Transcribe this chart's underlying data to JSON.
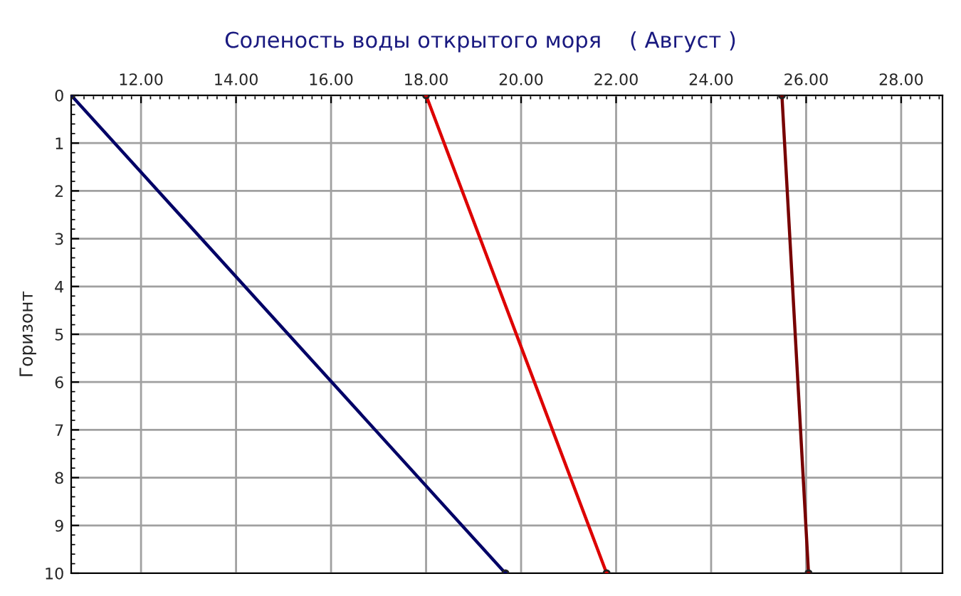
{
  "chart_data": {
    "type": "line",
    "title": "Соленость воды открытого моря    ( Август )",
    "ylabel": "Горизонт",
    "xlim": [
      10.53,
      28.87
    ],
    "ylim": [
      10,
      0
    ],
    "xticks": [
      {
        "value": 12,
        "label": "12.00"
      },
      {
        "value": 14,
        "label": "14.00"
      },
      {
        "value": 16,
        "label": "16.00"
      },
      {
        "value": 18,
        "label": "18.00"
      },
      {
        "value": 20,
        "label": "20.00"
      },
      {
        "value": 22,
        "label": "22.00"
      },
      {
        "value": 24,
        "label": "24.00"
      },
      {
        "value": 26,
        "label": "26.00"
      },
      {
        "value": 28,
        "label": "28.00"
      }
    ],
    "yticks": [
      0,
      1,
      2,
      3,
      4,
      5,
      6,
      7,
      8,
      9,
      10
    ],
    "grid": true,
    "marker": "circle",
    "line_style": "solid",
    "series": [
      {
        "color": "#000066",
        "x": [
          10.53,
          19.67
        ],
        "values": [
          0,
          10
        ]
      },
      {
        "color": "#dd0000",
        "x": [
          18.0,
          21.8
        ],
        "values": [
          0,
          10
        ]
      },
      {
        "color": "#770000",
        "x": [
          25.49,
          26.05
        ],
        "values": [
          0,
          10
        ]
      }
    ]
  }
}
